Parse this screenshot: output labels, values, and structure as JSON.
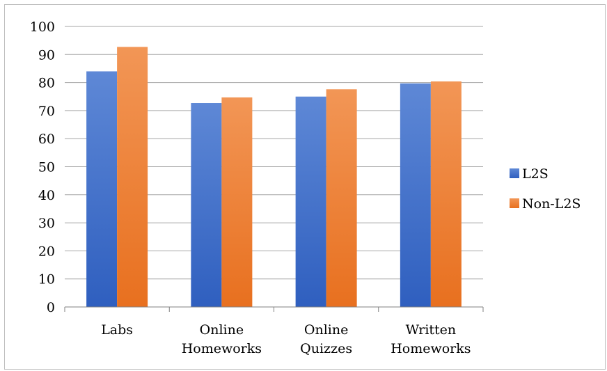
{
  "chart_data": {
    "type": "bar",
    "title": "",
    "xlabel": "",
    "ylabel": "",
    "categories": [
      [
        "Labs"
      ],
      [
        "Online",
        "Homeworks"
      ],
      [
        "Online",
        "Quizzes"
      ],
      [
        "Written",
        "Homeworks"
      ]
    ],
    "series": [
      {
        "name": "L2S",
        "values": [
          84,
          72.7,
          75,
          79.7
        ],
        "color_top": "#5e88d6",
        "color_bottom": "#2f5fbf"
      },
      {
        "name": "Non-L2S",
        "values": [
          92.7,
          74.7,
          77.6,
          80.4
        ],
        "color_top": "#f29656",
        "color_bottom": "#e8701f"
      }
    ],
    "ylim": [
      0,
      100
    ],
    "yticks": [
      "0",
      "10",
      "20",
      "30",
      "40",
      "50",
      "60",
      "70",
      "80",
      "90",
      "100"
    ],
    "grid": true,
    "legend_position": "right"
  }
}
